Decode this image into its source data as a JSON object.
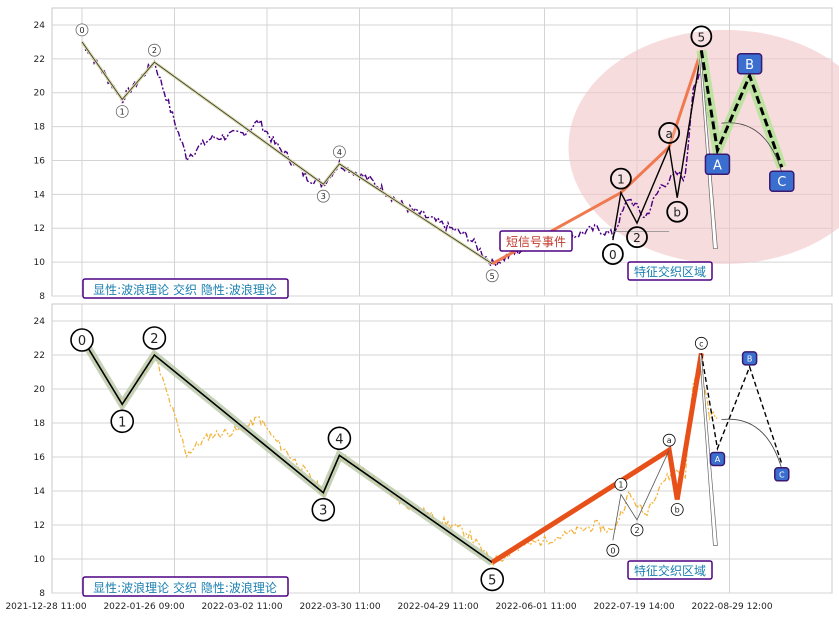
{
  "chart_data": [
    {
      "type": "line",
      "title": "",
      "xlabel": "",
      "ylabel": "",
      "ylim": [
        8,
        25
      ],
      "yticks": [
        8,
        10,
        12,
        14,
        16,
        18,
        20,
        22,
        24
      ],
      "grid": true,
      "annotation_box": "显性:波浪理论 交织 隐性:波浪理论",
      "region_label": "特征交织区域",
      "signal_label": "短信号事件",
      "colors": {
        "price": "#4b0082",
        "zone": "#f2c4c8",
        "orange": "#f07a50",
        "wave_c": "#f07a50",
        "future": "#000000",
        "box": "#3a6fd0"
      },
      "waves": [
        {
          "label": "0",
          "x": 0,
          "y": 23.0
        },
        {
          "label": "1",
          "x": 5,
          "y": 19.6
        },
        {
          "label": "2",
          "x": 9,
          "y": 21.8
        },
        {
          "label": "3",
          "x": 30,
          "y": 14.6
        },
        {
          "label": "4",
          "x": 32,
          "y": 15.8
        },
        {
          "label": "5",
          "x": 51,
          "y": 9.9
        }
      ],
      "subwaves": [
        {
          "label": "0",
          "x": 66,
          "y": 11.3
        },
        {
          "label": "1",
          "x": 67,
          "y": 14.1
        },
        {
          "label": "2",
          "x": 69,
          "y": 12.3
        },
        {
          "label": "a",
          "x": 73,
          "y": 16.8
        },
        {
          "label": "b",
          "x": 74,
          "y": 13.8
        },
        {
          "label": "5",
          "x": 77,
          "y": 22.5
        }
      ],
      "projection": [
        {
          "label": "A",
          "x": 79,
          "y": 16.6
        },
        {
          "label": "B",
          "x": 83,
          "y": 21.0
        },
        {
          "label": "C",
          "x": 87,
          "y": 15.6
        }
      ]
    },
    {
      "type": "line",
      "title": "",
      "xlabel": "",
      "ylabel": "",
      "ylim": [
        8,
        25
      ],
      "yticks": [
        8,
        10,
        12,
        14,
        16,
        18,
        20,
        22,
        24
      ],
      "grid": true,
      "annotation_box": "显性:波浪理论 交织 隐性:波浪理论",
      "region_label": "特征交织区域",
      "colors": {
        "price": "#f2b134",
        "wave": "#000000",
        "band": "#b9c8a8",
        "orange": "#e8501a"
      },
      "waves": [
        {
          "label": "0",
          "x": 0,
          "y": 23.0
        },
        {
          "label": "1",
          "x": 5,
          "y": 19.1
        },
        {
          "label": "2",
          "x": 9,
          "y": 22.0
        },
        {
          "label": "3",
          "x": 30,
          "y": 13.9
        },
        {
          "label": "4",
          "x": 32,
          "y": 16.1
        },
        {
          "label": "5",
          "x": 51,
          "y": 9.8
        }
      ],
      "subwaves": [
        {
          "label": "0",
          "x": 66,
          "y": 11.1
        },
        {
          "label": "1",
          "x": 67,
          "y": 13.8
        },
        {
          "label": "2",
          "x": 69,
          "y": 12.3
        },
        {
          "label": "a",
          "x": 73,
          "y": 16.4
        },
        {
          "label": "b",
          "x": 74,
          "y": 13.5
        },
        {
          "label": "c",
          "x": 77,
          "y": 22.1
        }
      ],
      "projection": [
        {
          "label": "A",
          "x": 79,
          "y": 16.5
        },
        {
          "label": "B",
          "x": 83,
          "y": 21.3
        },
        {
          "label": "C",
          "x": 87,
          "y": 15.6
        }
      ]
    }
  ],
  "x_axis": {
    "tick_labels": [
      "2021-12-28 11:00",
      "2022-01-26 09:00",
      "2022-03-02 11:00",
      "2022-03-30 11:00",
      "2022-04-29 11:00",
      "2022-06-01 11:00",
      "2022-07-19 14:00",
      "2022-08-29 12:00"
    ],
    "tick_index": [
      0,
      10,
      20,
      30,
      40,
      50,
      60,
      70
    ],
    "x_max": 92
  }
}
